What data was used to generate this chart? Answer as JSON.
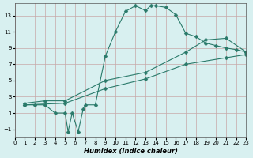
{
  "xlabel": "Humidex (Indice chaleur)",
  "bg_color": "#d8f0f0",
  "grid_color": "#c8a8a8",
  "line_color": "#2a7a6a",
  "xlim": [
    0,
    23
  ],
  "ylim": [
    -2,
    14.5
  ],
  "xticks": [
    0,
    1,
    2,
    3,
    4,
    5,
    6,
    7,
    8,
    9,
    10,
    11,
    12,
    13,
    14,
    15,
    16,
    17,
    18,
    19,
    20,
    21,
    22,
    23
  ],
  "yticks": [
    -1,
    1,
    3,
    5,
    7,
    9,
    11,
    13
  ],
  "line1_x": [
    1,
    2,
    3,
    4,
    5,
    5.3,
    5.7,
    6.3,
    6.8,
    7,
    8,
    9,
    10,
    11,
    12,
    13,
    13.5,
    14,
    15,
    16,
    17,
    18,
    19,
    20,
    21,
    22,
    23
  ],
  "line1_y": [
    2,
    2,
    2,
    1,
    1,
    -1.3,
    1.0,
    -1.3,
    1.5,
    2,
    2,
    8,
    11,
    13.5,
    14.2,
    13.6,
    14.2,
    14.2,
    14.0,
    13.1,
    10.8,
    10.4,
    9.6,
    9.3,
    9.0,
    8.8,
    8.5
  ],
  "line2_x": [
    1,
    3,
    5,
    9,
    13,
    17,
    19,
    21,
    23
  ],
  "line2_y": [
    2.2,
    2.5,
    2.5,
    5.0,
    6.0,
    8.5,
    10.0,
    10.2,
    8.5
  ],
  "line3_x": [
    1,
    5,
    9,
    13,
    17,
    21,
    23
  ],
  "line3_y": [
    2.0,
    2.2,
    4.0,
    5.2,
    7.0,
    7.8,
    8.2
  ]
}
